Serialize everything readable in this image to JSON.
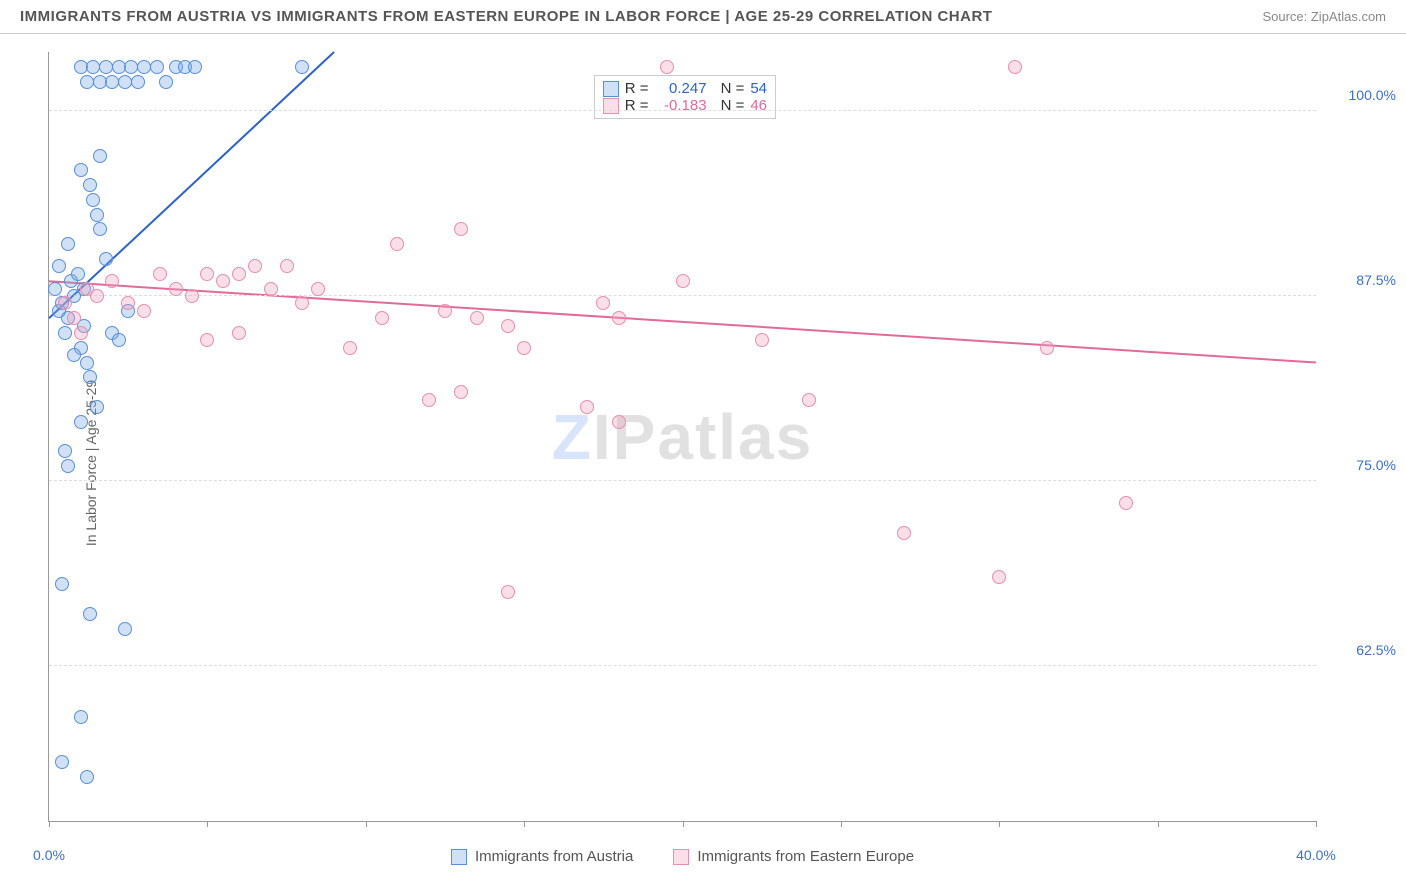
{
  "header": {
    "title": "IMMIGRANTS FROM AUSTRIA VS IMMIGRANTS FROM EASTERN EUROPE IN LABOR FORCE | AGE 25-29 CORRELATION CHART",
    "source": "Source: ZipAtlas.com"
  },
  "watermark": {
    "first": "Z",
    "rest": "IPatlas"
  },
  "chart": {
    "type": "scatter",
    "y_axis_label": "In Labor Force | Age 25-29",
    "xlim": [
      0,
      40
    ],
    "ylim": [
      52,
      104
    ],
    "x_ticks": [
      0,
      5,
      10,
      15,
      20,
      25,
      30,
      35,
      40
    ],
    "x_tick_labels": {
      "0": "0.0%",
      "40": "40.0%"
    },
    "x_tick_color": "#3b6fc9",
    "y_gridlines": [
      62.5,
      75.0,
      87.5,
      100.0
    ],
    "y_tick_labels": [
      "62.5%",
      "75.0%",
      "87.5%",
      "100.0%"
    ],
    "y_tick_color": "#3b6fc9",
    "background_color": "#ffffff",
    "grid_color": "#dddddd",
    "marker_radius": 7,
    "marker_border_width": 1.5,
    "trend_line_width": 2,
    "series": [
      {
        "name": "Immigrants from Austria",
        "fill": "rgba(120,170,230,0.35)",
        "stroke": "#5a8fd6",
        "line_color": "#2d63c8",
        "R": "0.247",
        "N": "54",
        "trend": {
          "x1": 0,
          "y1": 86,
          "x2": 9,
          "y2": 104
        },
        "points": [
          [
            0.2,
            88
          ],
          [
            0.3,
            86.5
          ],
          [
            0.4,
            87
          ],
          [
            0.5,
            85
          ],
          [
            0.6,
            86
          ],
          [
            0.7,
            88.5
          ],
          [
            0.8,
            87.5
          ],
          [
            0.9,
            89
          ],
          [
            1.0,
            84
          ],
          [
            1.1,
            85.5
          ],
          [
            1.2,
            83
          ],
          [
            1.3,
            82
          ],
          [
            1.4,
            94
          ],
          [
            1.5,
            93
          ],
          [
            1.6,
            92
          ],
          [
            1.8,
            90
          ],
          [
            0.5,
            77
          ],
          [
            0.6,
            76
          ],
          [
            0.4,
            68
          ],
          [
            1.0,
            79
          ],
          [
            2.0,
            85
          ],
          [
            2.2,
            84.5
          ],
          [
            1.5,
            80
          ],
          [
            0.4,
            56
          ],
          [
            1.2,
            55
          ],
          [
            1.0,
            59
          ],
          [
            1.3,
            66
          ],
          [
            2.4,
            65
          ],
          [
            1.0,
            96
          ],
          [
            1.3,
            95
          ],
          [
            1.6,
            97
          ],
          [
            1.0,
            103
          ],
          [
            1.4,
            103
          ],
          [
            1.8,
            103
          ],
          [
            2.2,
            103
          ],
          [
            2.6,
            103
          ],
          [
            3.0,
            103
          ],
          [
            3.4,
            103
          ],
          [
            3.7,
            102
          ],
          [
            4.0,
            103
          ],
          [
            4.3,
            103
          ],
          [
            4.6,
            103
          ],
          [
            1.2,
            102
          ],
          [
            1.6,
            102
          ],
          [
            2.0,
            102
          ],
          [
            2.4,
            102
          ],
          [
            2.8,
            102
          ],
          [
            8.0,
            103
          ],
          [
            2.5,
            86.5
          ],
          [
            0.8,
            83.5
          ],
          [
            1.1,
            88
          ],
          [
            0.3,
            89.5
          ],
          [
            0.6,
            91
          ]
        ]
      },
      {
        "name": "Immigrants from Eastern Europe",
        "fill": "rgba(240,160,190,0.35)",
        "stroke": "#e78fb0",
        "line_color": "#e26a9a",
        "R": "-0.183",
        "N": "46",
        "trend": {
          "x1": 0,
          "y1": 88.5,
          "x2": 40,
          "y2": 83
        },
        "points": [
          [
            0.5,
            87
          ],
          [
            0.8,
            86
          ],
          [
            1.0,
            85
          ],
          [
            1.2,
            88
          ],
          [
            1.5,
            87.5
          ],
          [
            2.0,
            88.5
          ],
          [
            2.5,
            87
          ],
          [
            3.0,
            86.5
          ],
          [
            3.5,
            89
          ],
          [
            4.0,
            88
          ],
          [
            4.5,
            87.5
          ],
          [
            5.0,
            89
          ],
          [
            5.5,
            88.5
          ],
          [
            6.0,
            89
          ],
          [
            6.5,
            89.5
          ],
          [
            7.0,
            88
          ],
          [
            7.5,
            89.5
          ],
          [
            8.0,
            87
          ],
          [
            8.5,
            88
          ],
          [
            5.0,
            84.5
          ],
          [
            6.0,
            85
          ],
          [
            9.5,
            84
          ],
          [
            10.5,
            86
          ],
          [
            11.0,
            91
          ],
          [
            12.5,
            86.5
          ],
          [
            13.0,
            92
          ],
          [
            13.5,
            86
          ],
          [
            13.0,
            81
          ],
          [
            12.0,
            80.5
          ],
          [
            14.5,
            85.5
          ],
          [
            15.0,
            84
          ],
          [
            17.5,
            87
          ],
          [
            18.0,
            86
          ],
          [
            17.0,
            80
          ],
          [
            20.0,
            88.5
          ],
          [
            19.5,
            103
          ],
          [
            18.0,
            79
          ],
          [
            22.5,
            84.5
          ],
          [
            24.0,
            80.5
          ],
          [
            27.0,
            71.5
          ],
          [
            14.5,
            67.5
          ],
          [
            30.0,
            68.5
          ],
          [
            30.5,
            103
          ],
          [
            31.5,
            84
          ],
          [
            34.0,
            73.5
          ]
        ]
      }
    ],
    "legend_box": {
      "left_pct": 43,
      "top_pct": 3
    },
    "legend_labels": {
      "R": "R =",
      "N": "N ="
    }
  }
}
